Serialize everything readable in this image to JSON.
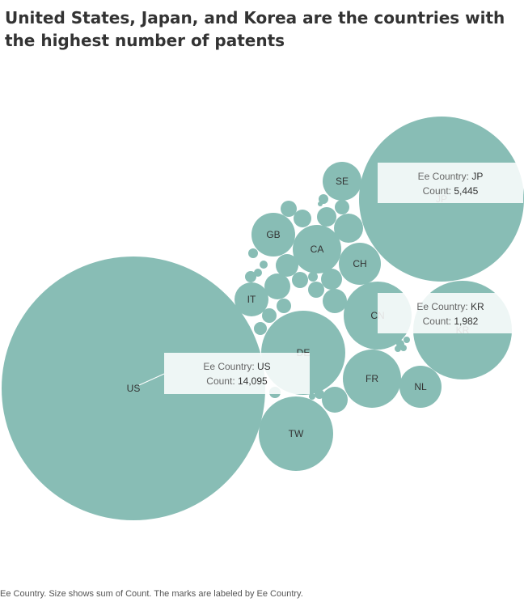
{
  "title": "United States, Japan, and Korea are the countries with the highest number of patents",
  "footer": "Ee Country.  Size shows sum of Count.  The marks are labeled by Ee Country.",
  "colors": {
    "bubble": "#88bdb5",
    "text": "#333333"
  },
  "chart_data": {
    "type": "packed-bubble",
    "size_field": "Count",
    "label_field": "Ee Country",
    "bubbles": [
      {
        "label": "US",
        "count": 14095
      },
      {
        "label": "JP",
        "count": 5445
      },
      {
        "label": "KR",
        "count": 1982
      },
      {
        "label": "DE",
        "count": 1495
      },
      {
        "label": "CN",
        "count": 960
      },
      {
        "label": "TW",
        "count": 1100
      },
      {
        "label": "FR",
        "count": 700
      },
      {
        "label": "CA",
        "count": 450
      },
      {
        "label": "GB",
        "count": 410
      },
      {
        "label": "CH",
        "count": 380
      },
      {
        "label": "NL",
        "count": 350
      },
      {
        "label": "SE",
        "count": 300
      },
      {
        "label": "IT",
        "count": 230
      },
      {
        "label": "",
        "count": 170
      },
      {
        "label": "",
        "count": 130
      },
      {
        "label": "",
        "count": 120
      },
      {
        "label": "",
        "count": 110
      },
      {
        "label": "",
        "count": 115
      },
      {
        "label": "",
        "count": 100
      },
      {
        "label": "",
        "count": 90
      },
      {
        "label": "",
        "count": 80
      },
      {
        "label": "",
        "count": 80
      },
      {
        "label": "",
        "count": 70
      },
      {
        "label": "",
        "count": 60
      },
      {
        "label": "",
        "count": 55
      },
      {
        "label": "",
        "count": 50
      },
      {
        "label": "",
        "count": 50
      },
      {
        "label": "",
        "count": 45
      },
      {
        "label": "",
        "count": 40
      },
      {
        "label": "",
        "count": 40
      },
      {
        "label": "",
        "count": 30
      },
      {
        "label": "",
        "count": 30
      },
      {
        "label": "",
        "count": 25
      },
      {
        "label": "",
        "count": 20
      },
      {
        "label": "",
        "count": 20
      },
      {
        "label": "",
        "count": 15
      },
      {
        "label": "",
        "count": 15
      },
      {
        "label": "",
        "count": 12
      },
      {
        "label": "",
        "count": 10
      },
      {
        "label": "",
        "count": 10
      },
      {
        "label": "",
        "count": 8
      },
      {
        "label": "",
        "count": 8
      },
      {
        "label": "",
        "count": 6
      },
      {
        "label": "",
        "count": 5
      }
    ],
    "tooltips": [
      {
        "country": "JP",
        "key1": "Ee Country:",
        "val1": "JP",
        "key2": "Count:",
        "val2": "5,445"
      },
      {
        "country": "KR",
        "key1": "Ee Country:",
        "val1": "KR",
        "key2": "Count:",
        "val2": "1,982"
      },
      {
        "country": "US",
        "key1": "Ee Country:",
        "val1": "US",
        "key2": "Count:",
        "val2": "14,095"
      }
    ]
  }
}
